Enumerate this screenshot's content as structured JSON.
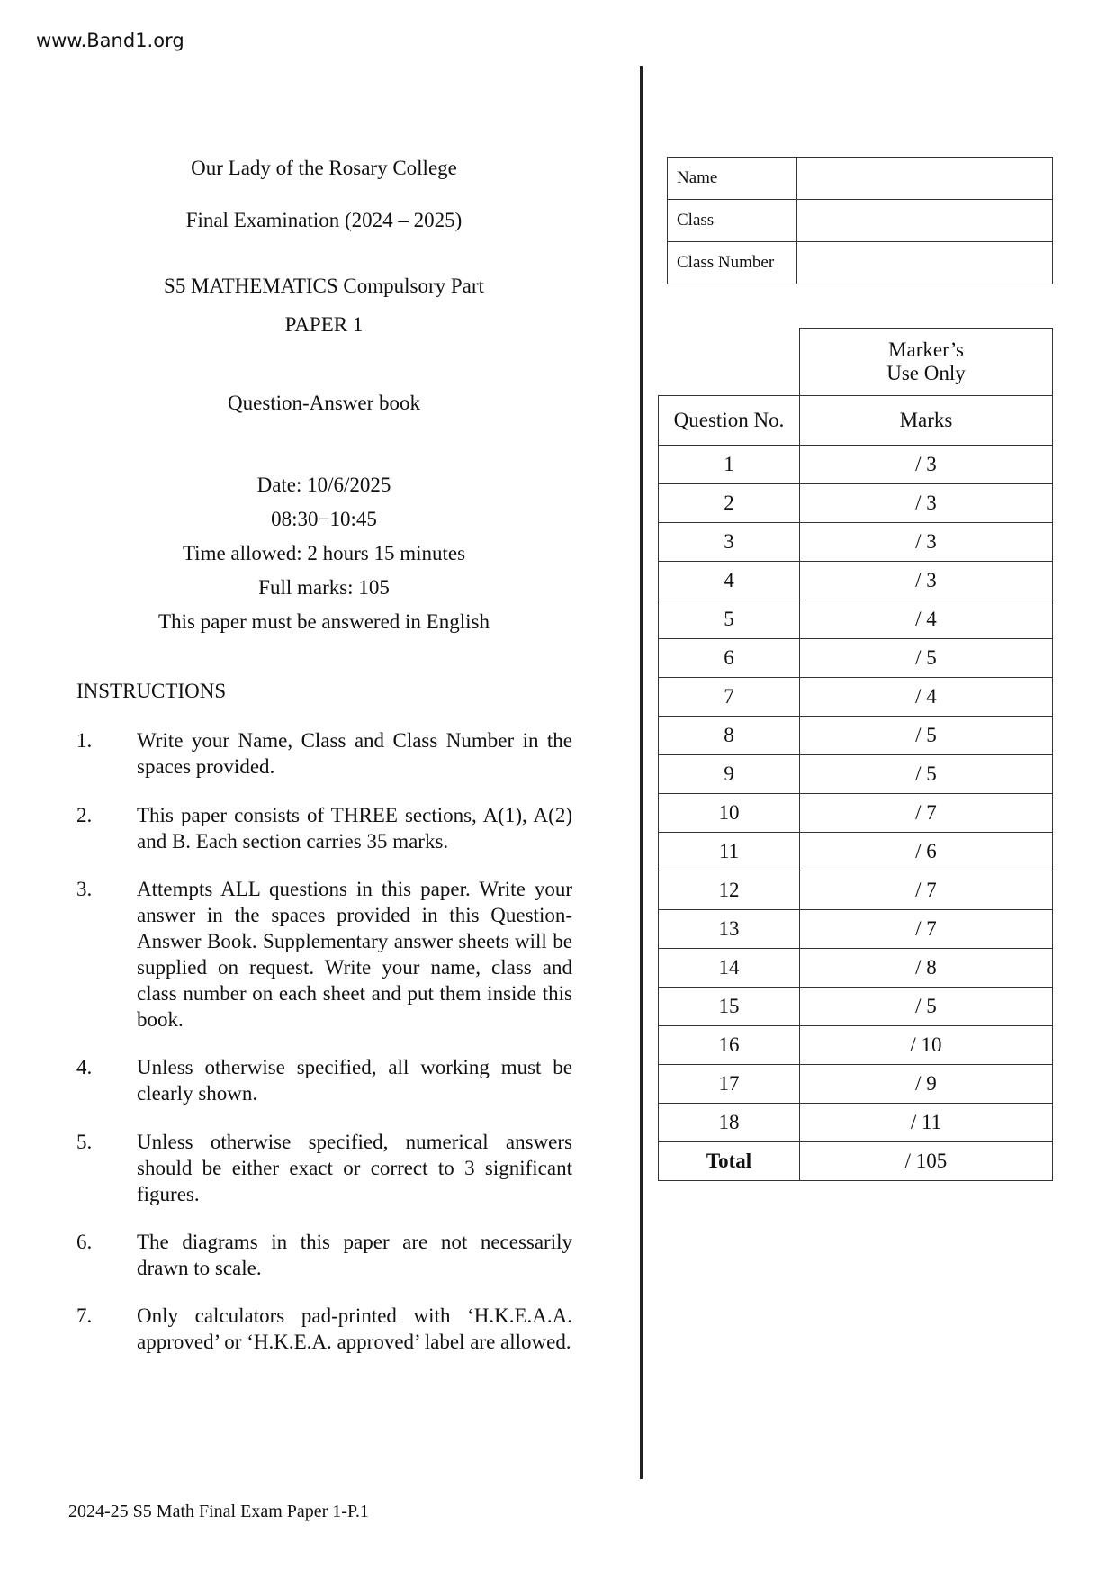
{
  "watermark": "www.Band1.org",
  "header": {
    "school": "Our Lady of the Rosary College",
    "exam": "Final Examination (2024 – 2025)",
    "subject": "S5 MATHEMATICS Compulsory Part",
    "paper": "PAPER 1",
    "book": "Question-Answer book",
    "date": "Date: 10/6/2025",
    "time": "08:30−10:45",
    "time_allowed": "Time allowed: 2 hours 15 minutes",
    "full_marks": "Full marks: 105",
    "language": "This paper must be answered in English"
  },
  "instructions": {
    "heading": "INSTRUCTIONS",
    "items": [
      {
        "n": "1.",
        "text": "Write your Name, Class and Class Number in the spaces provided."
      },
      {
        "n": "2.",
        "text": "This paper consists of THREE sections, A(1), A(2) and B. Each section carries 35 marks."
      },
      {
        "n": "3.",
        "text": "Attempts ALL questions in this paper. Write your answer in the spaces provided in this Question-Answer Book. Supplementary answer sheets will be supplied on request. Write your name, class and class number on each sheet and put them inside this book."
      },
      {
        "n": "4.",
        "text": "Unless otherwise specified, all working must be clearly shown."
      },
      {
        "n": "5.",
        "text": "Unless otherwise specified, numerical answers should be either exact or correct to 3 significant figures."
      },
      {
        "n": "6.",
        "text": "The diagrams in this paper are not necessarily drawn to scale."
      },
      {
        "n": "7.",
        "text": "Only calculators pad-printed with ‘H.K.E.A.A. approved’ or ‘H.K.E.A. approved’ label are allowed."
      }
    ]
  },
  "info_fields": [
    "Name",
    "Class",
    "Class Number"
  ],
  "marks_table": {
    "marker_header_1": "Marker’s",
    "marker_header_2": "Use Only",
    "col_question": "Question No.",
    "col_marks": "Marks",
    "rows": [
      [
        "1",
        "/ 3"
      ],
      [
        "2",
        "/ 3"
      ],
      [
        "3",
        "/ 3"
      ],
      [
        "4",
        "/ 3"
      ],
      [
        "5",
        "/ 4"
      ],
      [
        "6",
        "/ 5"
      ],
      [
        "7",
        "/ 4"
      ],
      [
        "8",
        "/ 5"
      ],
      [
        "9",
        "/ 5"
      ],
      [
        "10",
        "/ 7"
      ],
      [
        "11",
        "/ 6"
      ],
      [
        "12",
        "/ 7"
      ],
      [
        "13",
        "/ 7"
      ],
      [
        "14",
        "/ 8"
      ],
      [
        "15",
        "/ 5"
      ],
      [
        "16",
        "/ 10"
      ],
      [
        "17",
        "/ 9"
      ],
      [
        "18",
        "/ 11"
      ]
    ],
    "total_label": "Total",
    "total_marks": "/ 105"
  },
  "footer": "2024-25 S5 Math Final Exam Paper 1-P.1"
}
